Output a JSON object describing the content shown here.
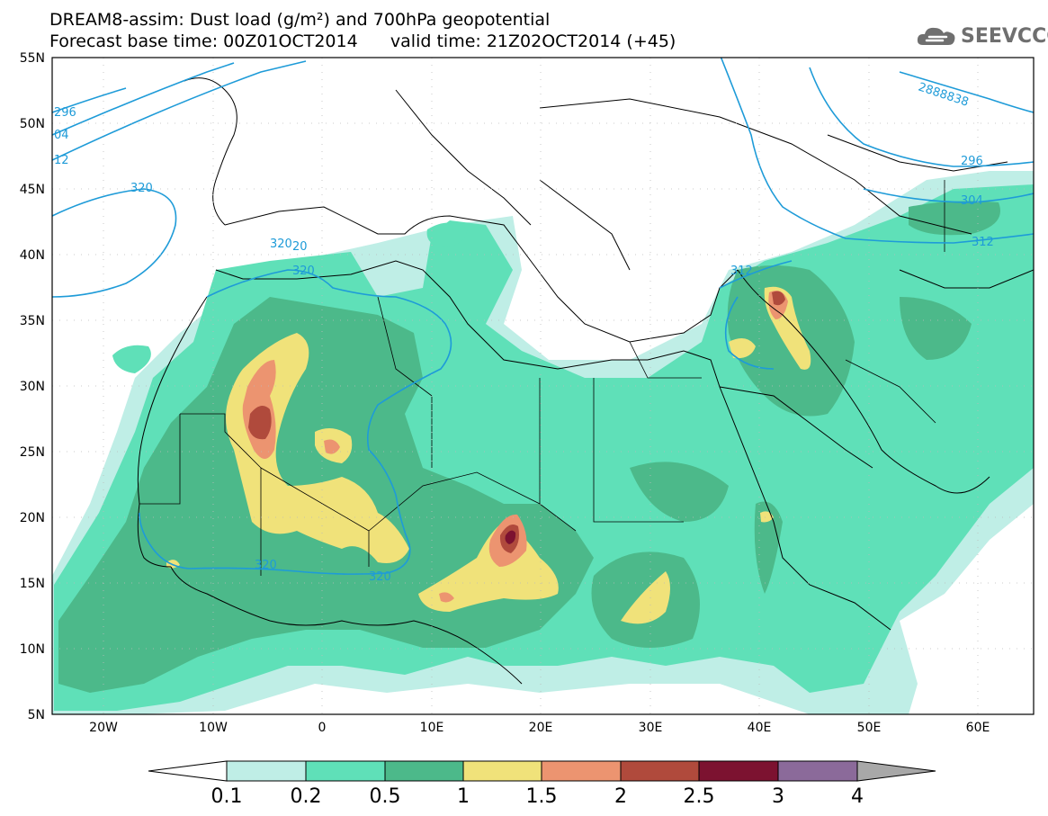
{
  "header": {
    "title_line1": "DREAM8-assim: Dust load (g/m²) and 700hPa geopotential",
    "title_line2": "Forecast base time: 00Z01OCT2014      valid time: 21Z02OCT2014 (+45)"
  },
  "logo": {
    "text": "SEEVCCC",
    "icon": "cloud-logo-icon"
  },
  "colors": {
    "ocean_bg": "#ffffff",
    "border": "#000000",
    "contour": "#1e9bd8",
    "bins": [
      "#bfeee6",
      "#5fe0b8",
      "#4cb98a",
      "#f0e27a",
      "#ec9470",
      "#b04a3c",
      "#7c1230",
      "#8b6a9a",
      "#a8a8a8"
    ]
  },
  "axes": {
    "lat_labels": [
      "55N",
      "50N",
      "45N",
      "40N",
      "35N",
      "30N",
      "25N",
      "20N",
      "15N",
      "10N",
      "5N"
    ],
    "lon_labels": [
      "20W",
      "10W",
      "0",
      "10E",
      "20E",
      "30E",
      "40E",
      "50E",
      "60E"
    ]
  },
  "contours": [
    {
      "value": "296",
      "label": "296"
    },
    {
      "value": "304",
      "label": "04"
    },
    {
      "value": "312",
      "label": "12"
    },
    {
      "value": "320",
      "label": "320"
    },
    {
      "value": "320",
      "label": "320"
    },
    {
      "value": "320",
      "label": "20"
    },
    {
      "value": "320",
      "label": "320"
    },
    {
      "value": "320",
      "label": "320"
    },
    {
      "value": "320",
      "label": "320"
    },
    {
      "value": "312",
      "label": "312"
    },
    {
      "value": "2888838",
      "label": "2888838"
    },
    {
      "value": "296",
      "label": "296"
    },
    {
      "value": "304",
      "label": "304"
    },
    {
      "value": "312",
      "label": "312"
    }
  ],
  "colorbar": {
    "labels": [
      "0.1",
      "0.2",
      "0.5",
      "1",
      "1.5",
      "2",
      "2.5",
      "3",
      "4"
    ]
  }
}
